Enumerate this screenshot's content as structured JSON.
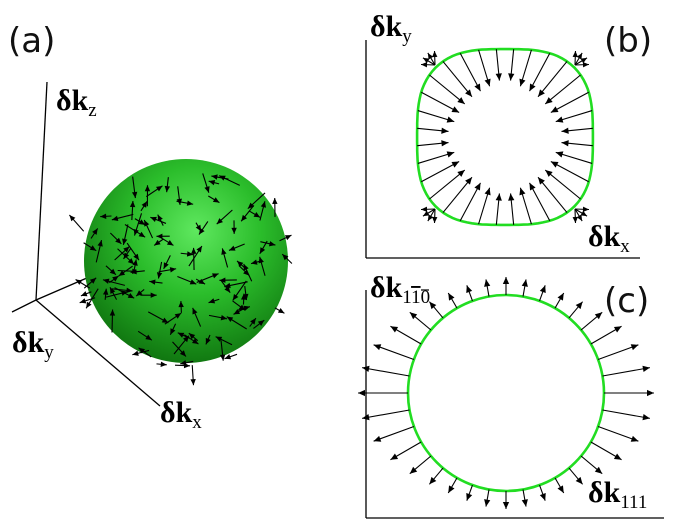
{
  "panels": {
    "a": {
      "label": "(a)",
      "axes": {
        "z": {
          "main": "δk",
          "sub": "z"
        },
        "y": {
          "main": "δk",
          "sub": "y"
        },
        "x": {
          "main": "δk",
          "sub": "x"
        }
      }
    },
    "b": {
      "label": "(b)",
      "axes": {
        "y": {
          "main": "δk",
          "sub": "y"
        },
        "x": {
          "main": "δk",
          "sub": "x"
        }
      }
    },
    "c": {
      "label": "(c)",
      "axes": {
        "y": {
          "main": "δk",
          "sub": "1",
          "sub_bar": "1",
          "sub_tail": "0"
        },
        "x": {
          "main": "δk",
          "sub": "111"
        }
      }
    }
  },
  "colors": {
    "sphere": "#1fa81f",
    "circle": "#22dd22",
    "arrows": "#000000"
  }
}
